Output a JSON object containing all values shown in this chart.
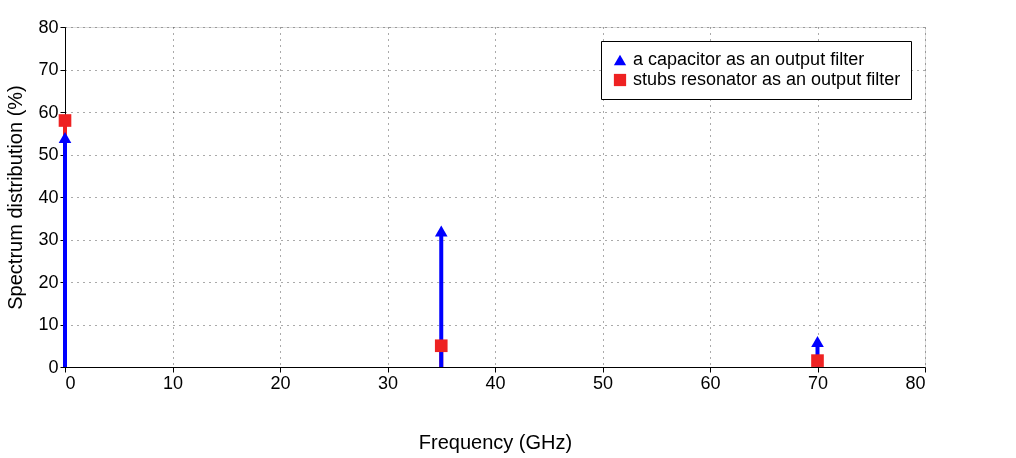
{
  "chart_data": {
    "type": "lollipop",
    "xlabel": "Frequency (GHz)",
    "ylabel": "Spectrum distribution (%)",
    "x": [
      0,
      35,
      70
    ],
    "series": [
      {
        "name": "a capacitor as an output filter",
        "color": "#0000ff",
        "marker": "triangle",
        "values": [
          54,
          32,
          6
        ]
      },
      {
        "name": "stubs resonator as an output filter",
        "color": "#ee2222",
        "marker": "square",
        "values": [
          58,
          5,
          1.5
        ]
      }
    ],
    "xlim": [
      0,
      80
    ],
    "xticks": [
      0,
      10,
      20,
      30,
      40,
      50,
      60,
      70,
      80
    ],
    "ylim": [
      0,
      80
    ],
    "yticks": [
      0,
      10,
      20,
      30,
      40,
      50,
      60,
      70,
      80
    ],
    "grid": true,
    "legend": "top right"
  }
}
